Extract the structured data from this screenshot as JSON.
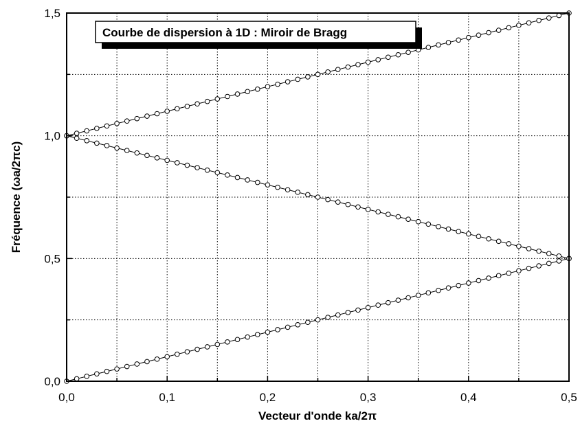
{
  "chart_data": {
    "type": "scatter",
    "title": "Courbe de dispersion à 1D : Miroir de Bragg",
    "xlabel": "Vecteur d'onde ka/2π",
    "ylabel": "Fréquence (ωa/2πc)",
    "xlim": [
      0.0,
      0.5
    ],
    "ylim": [
      0.0,
      1.5
    ],
    "x_ticks": [
      "0,0",
      "0,1",
      "0,2",
      "0,3",
      "0,4",
      "0,5"
    ],
    "y_ticks": [
      "0,0",
      "0,5",
      "1,0",
      "1,5"
    ],
    "grid": true,
    "grid_style": "dotted",
    "title_box": "top-left, framed with drop shadow",
    "marker": "open-circle",
    "line_color": "#000000",
    "x": [
      0.0,
      0.01,
      0.02,
      0.03,
      0.04,
      0.05,
      0.06,
      0.07,
      0.08,
      0.09,
      0.1,
      0.11,
      0.12,
      0.13,
      0.14,
      0.15,
      0.16,
      0.17,
      0.18,
      0.19,
      0.2,
      0.21,
      0.22,
      0.23,
      0.24,
      0.25,
      0.26,
      0.27,
      0.28,
      0.29,
      0.3,
      0.31,
      0.32,
      0.33,
      0.34,
      0.35,
      0.36,
      0.37,
      0.38,
      0.39,
      0.4,
      0.41,
      0.42,
      0.43,
      0.44,
      0.45,
      0.46,
      0.47,
      0.48,
      0.49,
      0.5
    ],
    "series": [
      {
        "values": [
          0.0,
          0.01,
          0.02,
          0.03,
          0.04,
          0.05,
          0.06,
          0.07,
          0.08,
          0.09,
          0.1,
          0.11,
          0.12,
          0.13,
          0.14,
          0.15,
          0.16,
          0.17,
          0.18,
          0.19,
          0.2,
          0.21,
          0.22,
          0.23,
          0.24,
          0.25,
          0.26,
          0.27,
          0.28,
          0.29,
          0.3,
          0.31,
          0.32,
          0.33,
          0.34,
          0.35,
          0.36,
          0.37,
          0.38,
          0.39,
          0.4,
          0.41,
          0.42,
          0.43,
          0.44,
          0.45,
          0.46,
          0.47,
          0.48,
          0.49,
          0.5
        ]
      },
      {
        "values": [
          1.0,
          0.99,
          0.98,
          0.97,
          0.96,
          0.95,
          0.94,
          0.93,
          0.92,
          0.91,
          0.9,
          0.89,
          0.88,
          0.87,
          0.86,
          0.85,
          0.84,
          0.83,
          0.82,
          0.81,
          0.8,
          0.79,
          0.78,
          0.77,
          0.76,
          0.75,
          0.74,
          0.73,
          0.72,
          0.71,
          0.7,
          0.69,
          0.68,
          0.67,
          0.66,
          0.65,
          0.64,
          0.63,
          0.62,
          0.61,
          0.6,
          0.59,
          0.58,
          0.57,
          0.56,
          0.55,
          0.54,
          0.53,
          0.52,
          0.51,
          0.5
        ]
      },
      {
        "values": [
          1.0,
          1.01,
          1.02,
          1.03,
          1.04,
          1.05,
          1.06,
          1.07,
          1.08,
          1.09,
          1.1,
          1.11,
          1.12,
          1.13,
          1.14,
          1.15,
          1.16,
          1.17,
          1.18,
          1.19,
          1.2,
          1.21,
          1.22,
          1.23,
          1.24,
          1.25,
          1.26,
          1.27,
          1.28,
          1.29,
          1.3,
          1.31,
          1.32,
          1.33,
          1.34,
          1.35,
          1.36,
          1.37,
          1.38,
          1.39,
          1.4,
          1.41,
          1.42,
          1.43,
          1.44,
          1.45,
          1.46,
          1.47,
          1.48,
          1.49,
          1.5
        ]
      }
    ]
  }
}
